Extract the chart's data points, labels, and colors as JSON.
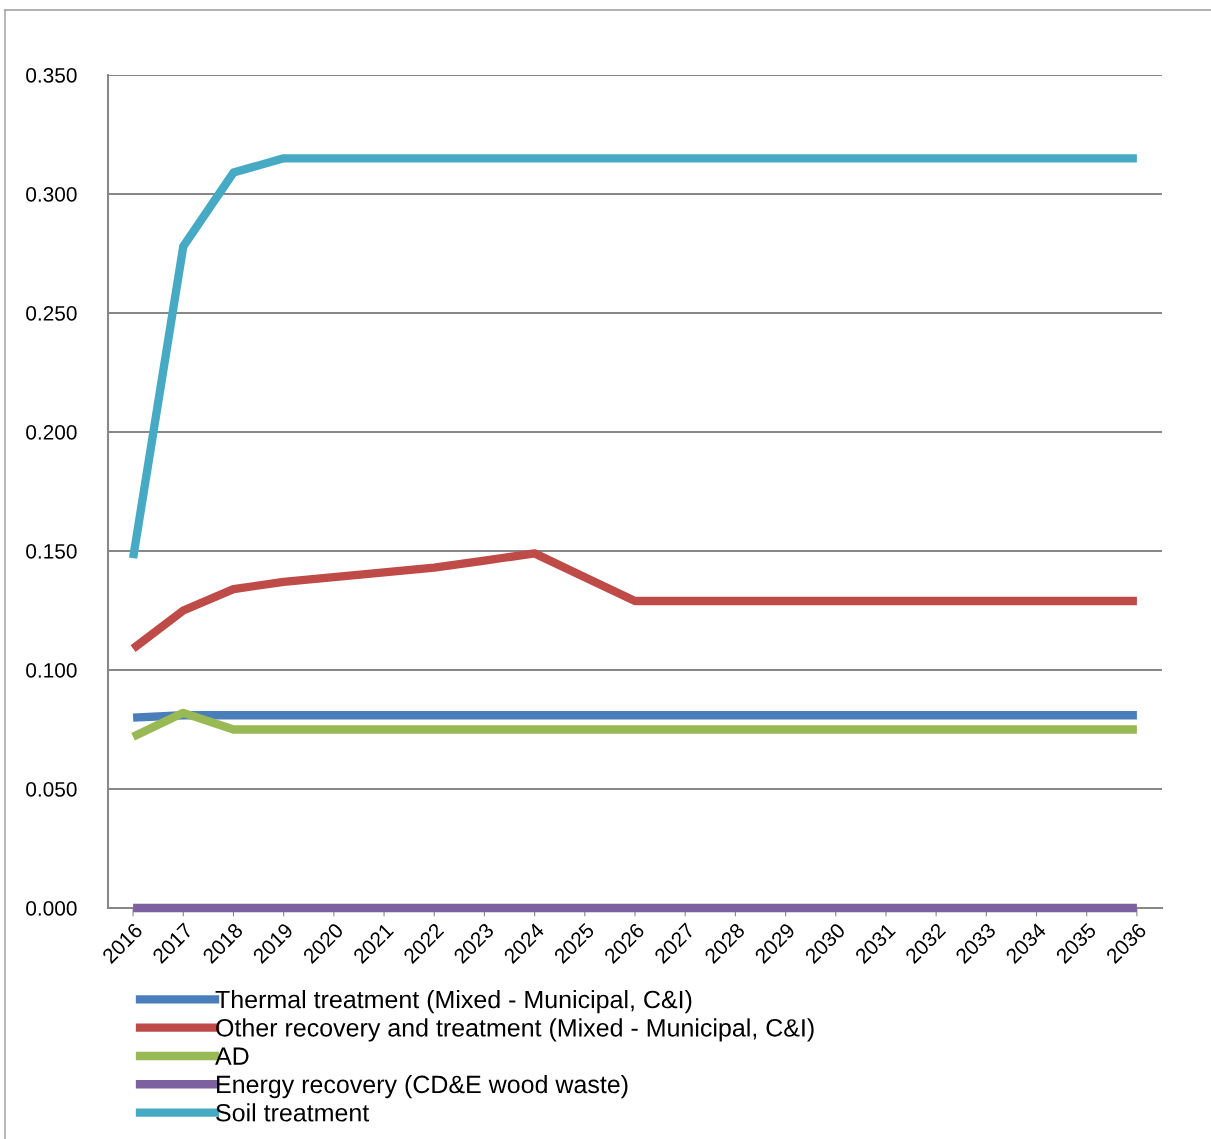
{
  "chart_data": {
    "type": "line",
    "categories": [
      "2016",
      "2017",
      "2018",
      "2019",
      "2020",
      "2021",
      "2022",
      "2023",
      "2024",
      "2025",
      "2026",
      "2027",
      "2028",
      "2029",
      "2030",
      "2031",
      "2032",
      "2033",
      "2034",
      "2035",
      "2036"
    ],
    "series": [
      {
        "name": "Thermal treatment (Mixed - Municipal, C&I)",
        "color": "#4a7ebb",
        "values": [
          0.08,
          0.081,
          0.081,
          0.081,
          0.081,
          0.081,
          0.081,
          0.081,
          0.081,
          0.081,
          0.081,
          0.081,
          0.081,
          0.081,
          0.081,
          0.081,
          0.081,
          0.081,
          0.081,
          0.081,
          0.081
        ]
      },
      {
        "name": "Other recovery and treatment (Mixed - Municipal, C&I)",
        "color": "#be4b48",
        "values": [
          0.109,
          0.125,
          0.134,
          0.137,
          0.139,
          0.141,
          0.143,
          0.146,
          0.149,
          0.139,
          0.129,
          0.129,
          0.129,
          0.129,
          0.129,
          0.129,
          0.129,
          0.129,
          0.129,
          0.129,
          0.129
        ]
      },
      {
        "name": "AD",
        "color": "#98b954",
        "values": [
          0.072,
          0.082,
          0.075,
          0.075,
          0.075,
          0.075,
          0.075,
          0.075,
          0.075,
          0.075,
          0.075,
          0.075,
          0.075,
          0.075,
          0.075,
          0.075,
          0.075,
          0.075,
          0.075,
          0.075,
          0.075
        ]
      },
      {
        "name": "Energy recovery (CD&E wood waste)",
        "color": "#7d60a0",
        "values": [
          0,
          0,
          0,
          0,
          0,
          0,
          0,
          0,
          0,
          0,
          0,
          0,
          0,
          0,
          0,
          0,
          0,
          0,
          0,
          0,
          0
        ]
      },
      {
        "name": "Soil treatment",
        "color": "#46aac5",
        "values": [
          0.147,
          0.278,
          0.309,
          0.315,
          0.315,
          0.315,
          0.315,
          0.315,
          0.315,
          0.315,
          0.315,
          0.315,
          0.315,
          0.315,
          0.315,
          0.315,
          0.315,
          0.315,
          0.315,
          0.315,
          0.315
        ]
      }
    ],
    "ylim": [
      0,
      0.35
    ],
    "yticks": [
      {
        "value": 0,
        "label": "0.000"
      },
      {
        "value": 0.05,
        "label": "0.050"
      },
      {
        "value": 0.1,
        "label": "0.100"
      },
      {
        "value": 0.15,
        "label": "0.150"
      },
      {
        "value": 0.2,
        "label": "0.200"
      },
      {
        "value": 0.25,
        "label": "0.250"
      },
      {
        "value": 0.3,
        "label": "0.300"
      },
      {
        "value": 0.35,
        "label": "0.350"
      }
    ],
    "grid": "y",
    "legend": "bottom",
    "marker": "none",
    "line_style": "solid"
  }
}
